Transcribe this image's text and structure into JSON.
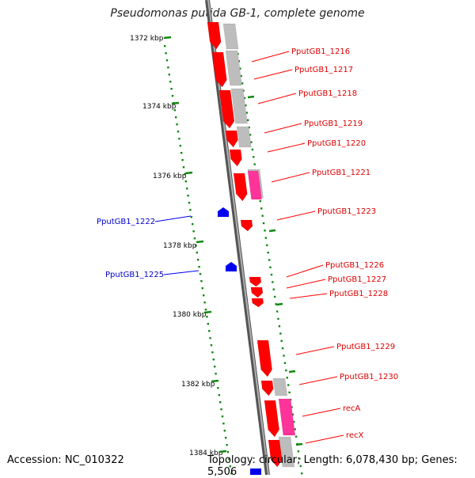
{
  "title": "Pseudomonas putida GB-1, complete genome",
  "accession": "Accession: NC_010322",
  "summary": "Topology: circular; Length: 6,078,430 bp; Genes: 5,506",
  "colors": {
    "backbone": "#8a8a8a",
    "forward_cds": "#ff0000",
    "reverse_cds": "#0000ee",
    "rna": "#ff3399",
    "gray_feature": "#bdbdbd",
    "tick": "#118811"
  },
  "kbp_ticks": [
    "1372 kbp",
    "1374 kbp",
    "1376 kbp",
    "1378 kbp",
    "1380 kbp",
    "1382 kbp",
    "1384 kbp"
  ],
  "gene_labels": {
    "forward": [
      "PputGB1_1216",
      "PputGB1_1217",
      "PputGB1_1218",
      "PputGB1_1219",
      "PputGB1_1220",
      "PputGB1_1221",
      "PputGB1_1223",
      "PputGB1_1226",
      "PputGB1_1227",
      "PputGB1_1228",
      "PputGB1_1229",
      "PputGB1_1230",
      "recA",
      "recX"
    ],
    "reverse": [
      "PputGB1_1222",
      "PputGB1_1225"
    ]
  }
}
